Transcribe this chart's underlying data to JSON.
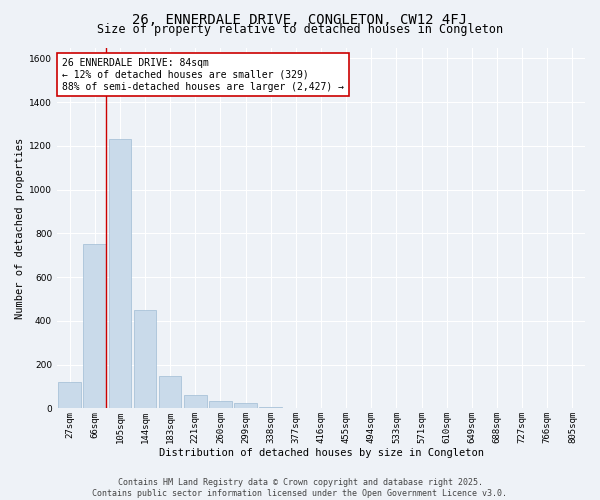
{
  "title": "26, ENNERDALE DRIVE, CONGLETON, CW12 4FJ",
  "subtitle": "Size of property relative to detached houses in Congleton",
  "xlabel": "Distribution of detached houses by size in Congleton",
  "ylabel": "Number of detached properties",
  "categories": [
    "27sqm",
    "66sqm",
    "105sqm",
    "144sqm",
    "183sqm",
    "221sqm",
    "260sqm",
    "299sqm",
    "338sqm",
    "377sqm",
    "416sqm",
    "455sqm",
    "494sqm",
    "533sqm",
    "571sqm",
    "610sqm",
    "649sqm",
    "688sqm",
    "727sqm",
    "766sqm",
    "805sqm"
  ],
  "values": [
    120,
    750,
    1230,
    450,
    150,
    60,
    35,
    25,
    5,
    0,
    0,
    0,
    0,
    0,
    0,
    0,
    0,
    0,
    0,
    0,
    0
  ],
  "bar_color": "#c9daea",
  "bar_edge_color": "#a0bcd4",
  "highlight_line_color": "#cc0000",
  "annotation_text": "26 ENNERDALE DRIVE: 84sqm\n← 12% of detached houses are smaller (329)\n88% of semi-detached houses are larger (2,427) →",
  "annotation_box_facecolor": "#ffffff",
  "annotation_box_edgecolor": "#cc0000",
  "ylim": [
    0,
    1650
  ],
  "yticks": [
    0,
    200,
    400,
    600,
    800,
    1000,
    1200,
    1400,
    1600
  ],
  "bg_color": "#eef2f7",
  "grid_color": "#ffffff",
  "footer": "Contains HM Land Registry data © Crown copyright and database right 2025.\nContains public sector information licensed under the Open Government Licence v3.0.",
  "title_fontsize": 10,
  "subtitle_fontsize": 8.5,
  "axis_label_fontsize": 7.5,
  "tick_fontsize": 6.5,
  "annotation_fontsize": 7,
  "footer_fontsize": 6
}
